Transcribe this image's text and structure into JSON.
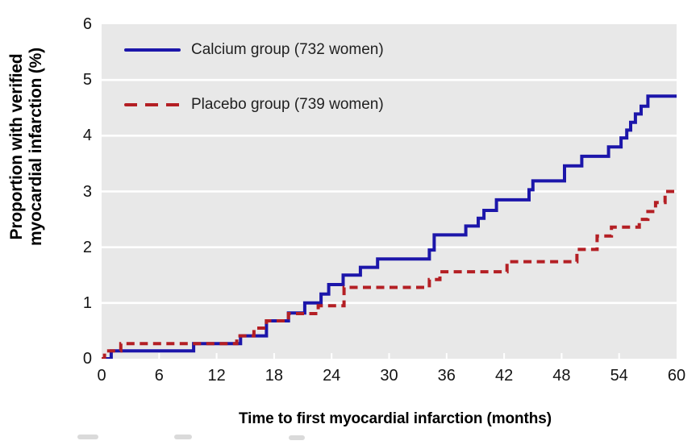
{
  "chart_data": {
    "type": "line",
    "subtype": "kaplan-meier-step",
    "title": "",
    "xlabel": "Time to first myocardial infarction (months)",
    "ylabel": "Proportion with verified myocardial infarction (%)",
    "ylabel_lines": [
      "Proportion with verified",
      "myocardial infarction (%)"
    ],
    "xlim": [
      0,
      60
    ],
    "ylim": [
      0,
      6
    ],
    "x_ticks": [
      0,
      6,
      12,
      18,
      24,
      30,
      36,
      42,
      48,
      54,
      60
    ],
    "y_ticks": [
      0,
      1,
      2,
      3,
      4,
      5,
      6
    ],
    "grid": "horizontal white gridlines at each y tick on gray plot background",
    "legend_position": "top-left inside plot",
    "plot_bg": "#e8e8e8",
    "gridline_color": "#ffffff",
    "series": [
      {
        "id": "calcium-group",
        "name": "Calcium group (732 women)",
        "color": "#1c16aa",
        "line_style": "solid",
        "final_value_pct": 4.7,
        "steps": [
          [
            0,
            0
          ],
          [
            1.0,
            0.14
          ],
          [
            9.6,
            0.27
          ],
          [
            14.5,
            0.41
          ],
          [
            17.2,
            0.68
          ],
          [
            19.5,
            0.82
          ],
          [
            21.2,
            1.0
          ],
          [
            22.9,
            1.16
          ],
          [
            23.7,
            1.33
          ],
          [
            25.2,
            1.5
          ],
          [
            27.0,
            1.64
          ],
          [
            28.8,
            1.79
          ],
          [
            34.2,
            1.95
          ],
          [
            34.7,
            2.22
          ],
          [
            38.0,
            2.38
          ],
          [
            39.3,
            2.52
          ],
          [
            39.9,
            2.66
          ],
          [
            41.2,
            2.85
          ],
          [
            44.6,
            3.03
          ],
          [
            45.0,
            3.19
          ],
          [
            48.3,
            3.46
          ],
          [
            50.1,
            3.63
          ],
          [
            52.9,
            3.8
          ],
          [
            54.2,
            3.96
          ],
          [
            54.8,
            4.1
          ],
          [
            55.2,
            4.24
          ],
          [
            55.7,
            4.39
          ],
          [
            56.3,
            4.53
          ],
          [
            57.0,
            4.71
          ]
        ]
      },
      {
        "id": "placebo-group",
        "name": "Placebo group (739 women)",
        "color": "#b41f24",
        "line_style": "dashed",
        "final_value_pct": 3.0,
        "steps": [
          [
            0,
            0
          ],
          [
            0.3,
            0.14
          ],
          [
            2.0,
            0.27
          ],
          [
            14.1,
            0.41
          ],
          [
            15.9,
            0.55
          ],
          [
            17.2,
            0.68
          ],
          [
            19.5,
            0.81
          ],
          [
            22.6,
            0.95
          ],
          [
            25.3,
            1.28
          ],
          [
            34.2,
            1.42
          ],
          [
            35.3,
            1.56
          ],
          [
            42.3,
            1.74
          ],
          [
            49.6,
            1.96
          ],
          [
            51.7,
            2.2
          ],
          [
            53.2,
            2.36
          ],
          [
            56.1,
            2.5
          ],
          [
            57.0,
            2.64
          ],
          [
            57.8,
            2.8
          ],
          [
            58.8,
            3.0
          ]
        ]
      }
    ]
  },
  "legend": [
    {
      "label": "Calcium group (732 women)",
      "color": "#1c16aa",
      "style": "solid"
    },
    {
      "label": "Placebo group (739 women)",
      "color": "#b41f24",
      "style": "dashed"
    }
  ]
}
